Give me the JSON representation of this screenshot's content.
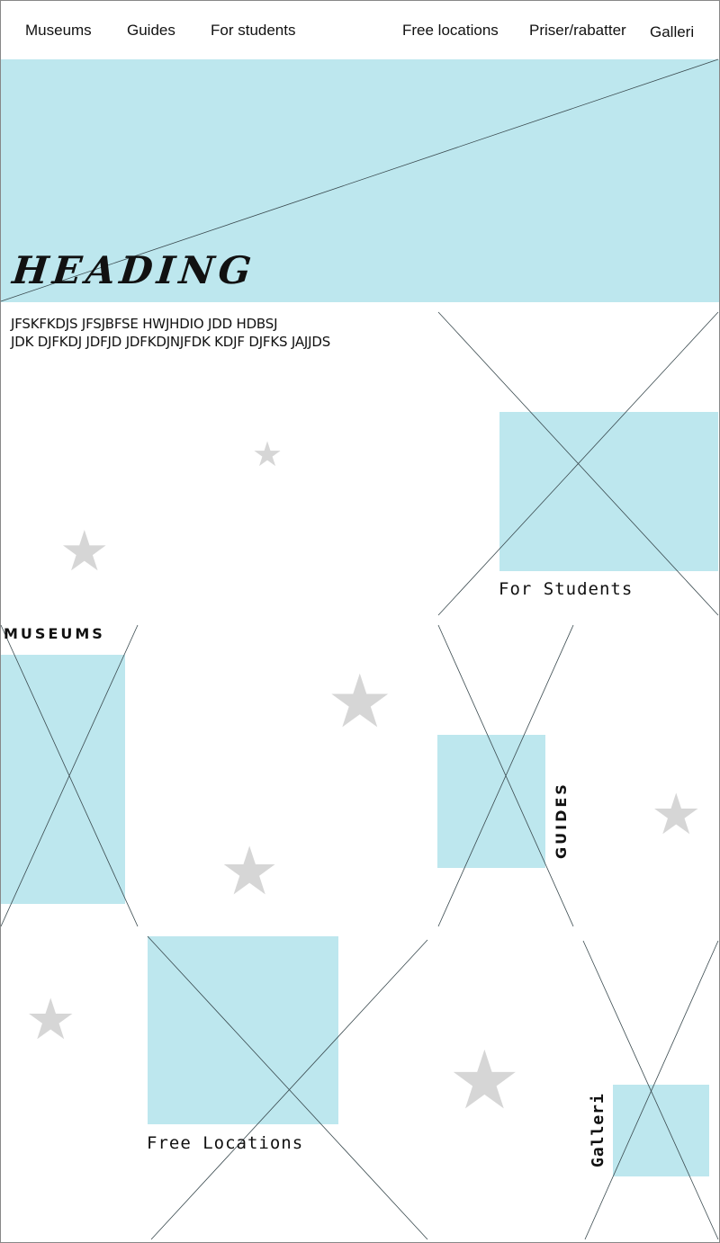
{
  "nav": {
    "items": [
      {
        "label": "Museums"
      },
      {
        "label": "Guides"
      },
      {
        "label": "For students"
      },
      {
        "label": "Free locations"
      },
      {
        "label": "Priser/rabatter"
      },
      {
        "label": "Galleri"
      }
    ]
  },
  "hero": {
    "heading": "HEADING",
    "intro_line1": "JFSKFKDJS JFSJBFSE HWJHDIO JDD HDBSJ",
    "intro_line2": "JDK DJFKDJ JDFJD JDFKDJNJFDK KDJF DJFKS JAJJDS"
  },
  "sections": {
    "for_students": "For Students",
    "museums": "MUSEUMS",
    "guides": "GUIDES",
    "free_locations": "Free Locations",
    "galleri": "Galleri"
  },
  "decor": {
    "star_icon": "star-icon",
    "placeholder_color": "#bde7ee",
    "star_color": "#d6d6d6"
  }
}
